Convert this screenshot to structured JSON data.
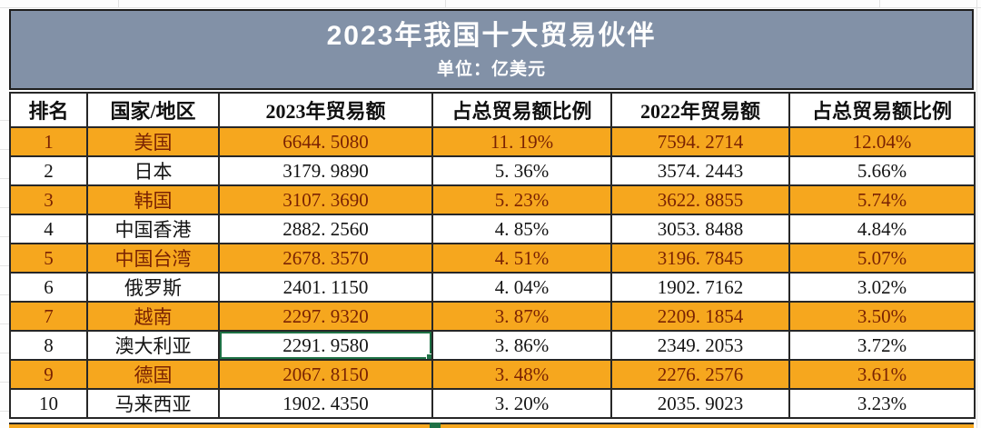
{
  "title": {
    "text": "2023年我国十大贸易伙伴",
    "unit": "单位：亿美元"
  },
  "table": {
    "headers": [
      "排名",
      "国家/地区",
      "2023年贸易额",
      "占总贸易额比例",
      "2022年贸易额",
      "占总贸易额比例"
    ],
    "rows": [
      {
        "rank": "1",
        "country": "美国",
        "trade_2023": "6644. 5080",
        "share_2023": "11. 19%",
        "trade_2022": "7594. 2714",
        "share_2022": "12.04%"
      },
      {
        "rank": "2",
        "country": "日本",
        "trade_2023": "3179. 9890",
        "share_2023": "5. 36%",
        "trade_2022": "3574. 2443",
        "share_2022": "5.66%"
      },
      {
        "rank": "3",
        "country": "韩国",
        "trade_2023": "3107. 3690",
        "share_2023": "5. 23%",
        "trade_2022": "3622. 8855",
        "share_2022": "5.74%"
      },
      {
        "rank": "4",
        "country": "中国香港",
        "trade_2023": "2882. 2560",
        "share_2023": "4. 85%",
        "trade_2022": "3053. 8488",
        "share_2022": "4.84%"
      },
      {
        "rank": "5",
        "country": "中国台湾",
        "trade_2023": "2678. 3570",
        "share_2023": "4. 51%",
        "trade_2022": "3196. 7845",
        "share_2022": "5.07%"
      },
      {
        "rank": "6",
        "country": "俄罗斯",
        "trade_2023": "2401. 1150",
        "share_2023": "4. 04%",
        "trade_2022": "1902. 7162",
        "share_2022": "3.02%"
      },
      {
        "rank": "7",
        "country": "越南",
        "trade_2023": "2297. 9320",
        "share_2023": "3. 87%",
        "trade_2022": "2209. 1854",
        "share_2022": "3.50%"
      },
      {
        "rank": "8",
        "country": "澳大利亚",
        "trade_2023": "2291. 9580",
        "share_2023": "3. 86%",
        "trade_2022": "2349. 2053",
        "share_2022": "3.72%"
      },
      {
        "rank": "9",
        "country": "德国",
        "trade_2023": "2067. 8150",
        "share_2023": "3. 48%",
        "trade_2022": "2276. 2576",
        "share_2022": "3.61%"
      },
      {
        "rank": "10",
        "country": "马来西亚",
        "trade_2023": "1902. 4350",
        "share_2023": "3. 20%",
        "trade_2022": "2035. 9023",
        "share_2022": "3.23%"
      }
    ],
    "selected_cell": {
      "row": "8",
      "column": "2023年贸易额",
      "value": "2291. 9580"
    }
  },
  "colors": {
    "title_bg": "#8291a7",
    "title_text": "#ffffff",
    "amber_row_bg": "#f6a71e",
    "amber_row_text": "#7a2303",
    "white_row_text": "#141414",
    "border": "#272727",
    "selection_green": "#1e7145"
  }
}
